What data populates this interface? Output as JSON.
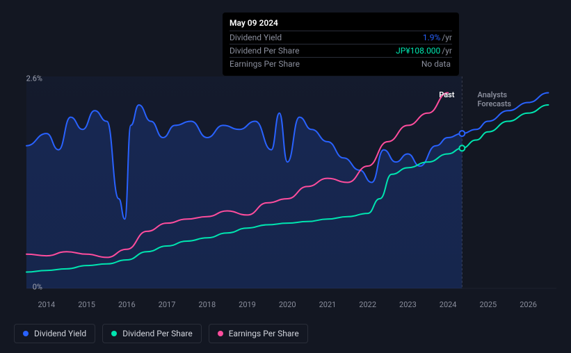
{
  "chart": {
    "type": "line",
    "background_color": "#131722",
    "grid_color": "#1e222d",
    "text_color": "#a0a4b0",
    "axis_text_color": "#8a8e9c",
    "ylim": [
      0,
      2.6
    ],
    "y_ticks": [
      0,
      2.6
    ],
    "y_tick_labels": [
      "0%",
      "2.6%"
    ],
    "x_years": [
      2014,
      2015,
      2016,
      2017,
      2018,
      2019,
      2020,
      2021,
      2022,
      2023,
      2024,
      2025,
      2026
    ],
    "past_boundary_year": 2024.35,
    "period_labels": {
      "past": "Past",
      "forecast": "Analysts Forecasts",
      "past_color": "#ffffff",
      "forecast_color": "#8a8e9c"
    },
    "series": [
      {
        "name": "Dividend Yield",
        "color": "#2962ff",
        "fill_opacity": 0.18,
        "line_width": 2,
        "marker_year": 2024.35,
        "marker_value": 1.9,
        "data": [
          [
            2013.5,
            1.75
          ],
          [
            2014.0,
            1.9
          ],
          [
            2014.3,
            1.7
          ],
          [
            2014.6,
            2.1
          ],
          [
            2014.9,
            1.95
          ],
          [
            2015.2,
            2.18
          ],
          [
            2015.5,
            2.05
          ],
          [
            2015.8,
            1.1
          ],
          [
            2015.95,
            0.85
          ],
          [
            2016.1,
            2.0
          ],
          [
            2016.3,
            2.25
          ],
          [
            2016.6,
            2.05
          ],
          [
            2016.9,
            1.85
          ],
          [
            2017.2,
            2.0
          ],
          [
            2017.6,
            2.05
          ],
          [
            2018.0,
            1.85
          ],
          [
            2018.4,
            2.0
          ],
          [
            2018.8,
            1.95
          ],
          [
            2019.2,
            2.05
          ],
          [
            2019.6,
            1.7
          ],
          [
            2019.8,
            2.15
          ],
          [
            2020.0,
            1.55
          ],
          [
            2020.3,
            2.1
          ],
          [
            2020.6,
            1.95
          ],
          [
            2021.0,
            1.8
          ],
          [
            2021.4,
            1.6
          ],
          [
            2021.8,
            1.45
          ],
          [
            2022.1,
            1.3
          ],
          [
            2022.4,
            1.7
          ],
          [
            2022.7,
            1.55
          ],
          [
            2023.0,
            1.65
          ],
          [
            2023.3,
            1.5
          ],
          [
            2023.7,
            1.75
          ],
          [
            2024.0,
            1.85
          ],
          [
            2024.35,
            1.9
          ],
          [
            2024.7,
            1.95
          ],
          [
            2025.0,
            2.05
          ],
          [
            2025.5,
            2.18
          ],
          [
            2026.0,
            2.28
          ],
          [
            2026.5,
            2.4
          ]
        ]
      },
      {
        "name": "Dividend Per Share",
        "color": "#00e5b0",
        "fill_opacity": 0,
        "line_width": 2,
        "marker_year": 2024.35,
        "marker_value": 1.72,
        "data": [
          [
            2013.5,
            0.2
          ],
          [
            2014.0,
            0.22
          ],
          [
            2014.5,
            0.24
          ],
          [
            2015.0,
            0.28
          ],
          [
            2015.5,
            0.3
          ],
          [
            2016.0,
            0.35
          ],
          [
            2016.5,
            0.45
          ],
          [
            2017.0,
            0.52
          ],
          [
            2017.5,
            0.58
          ],
          [
            2018.0,
            0.62
          ],
          [
            2018.5,
            0.68
          ],
          [
            2019.0,
            0.74
          ],
          [
            2019.5,
            0.78
          ],
          [
            2020.0,
            0.8
          ],
          [
            2020.5,
            0.82
          ],
          [
            2021.0,
            0.85
          ],
          [
            2021.5,
            0.88
          ],
          [
            2022.0,
            0.92
          ],
          [
            2022.3,
            1.1
          ],
          [
            2022.6,
            1.4
          ],
          [
            2023.0,
            1.48
          ],
          [
            2023.5,
            1.55
          ],
          [
            2024.0,
            1.65
          ],
          [
            2024.35,
            1.72
          ],
          [
            2024.7,
            1.82
          ],
          [
            2025.0,
            1.92
          ],
          [
            2025.5,
            2.05
          ],
          [
            2026.0,
            2.15
          ],
          [
            2026.5,
            2.25
          ]
        ]
      },
      {
        "name": "Earnings Per Share",
        "color": "#ff4d9d",
        "fill_opacity": 0,
        "line_width": 2,
        "data": [
          [
            2013.5,
            0.42
          ],
          [
            2014.0,
            0.4
          ],
          [
            2014.5,
            0.45
          ],
          [
            2015.0,
            0.42
          ],
          [
            2015.5,
            0.38
          ],
          [
            2016.0,
            0.48
          ],
          [
            2016.5,
            0.7
          ],
          [
            2017.0,
            0.8
          ],
          [
            2017.5,
            0.85
          ],
          [
            2018.0,
            0.88
          ],
          [
            2018.5,
            0.95
          ],
          [
            2019.0,
            0.9
          ],
          [
            2019.5,
            1.05
          ],
          [
            2020.0,
            1.1
          ],
          [
            2020.5,
            1.25
          ],
          [
            2021.0,
            1.35
          ],
          [
            2021.5,
            1.3
          ],
          [
            2022.0,
            1.5
          ],
          [
            2022.5,
            1.8
          ],
          [
            2023.0,
            2.0
          ],
          [
            2023.5,
            2.15
          ],
          [
            2024.0,
            2.4
          ]
        ]
      }
    ]
  },
  "tooltip": {
    "date": "May 09 2024",
    "rows": [
      {
        "label": "Dividend Yield",
        "value": "1.9%",
        "unit": "/yr",
        "value_color": "#2962ff"
      },
      {
        "label": "Dividend Per Share",
        "value": "JP¥108.000",
        "unit": "/yr",
        "value_color": "#00e5b0"
      },
      {
        "label": "Earnings Per Share",
        "value": "No data",
        "unit": "",
        "value_color": "#8a8e9c"
      }
    ]
  },
  "legend": {
    "items": [
      {
        "label": "Dividend Yield",
        "color": "#2962ff"
      },
      {
        "label": "Dividend Per Share",
        "color": "#00e5b0"
      },
      {
        "label": "Earnings Per Share",
        "color": "#ff4d9d"
      }
    ]
  }
}
